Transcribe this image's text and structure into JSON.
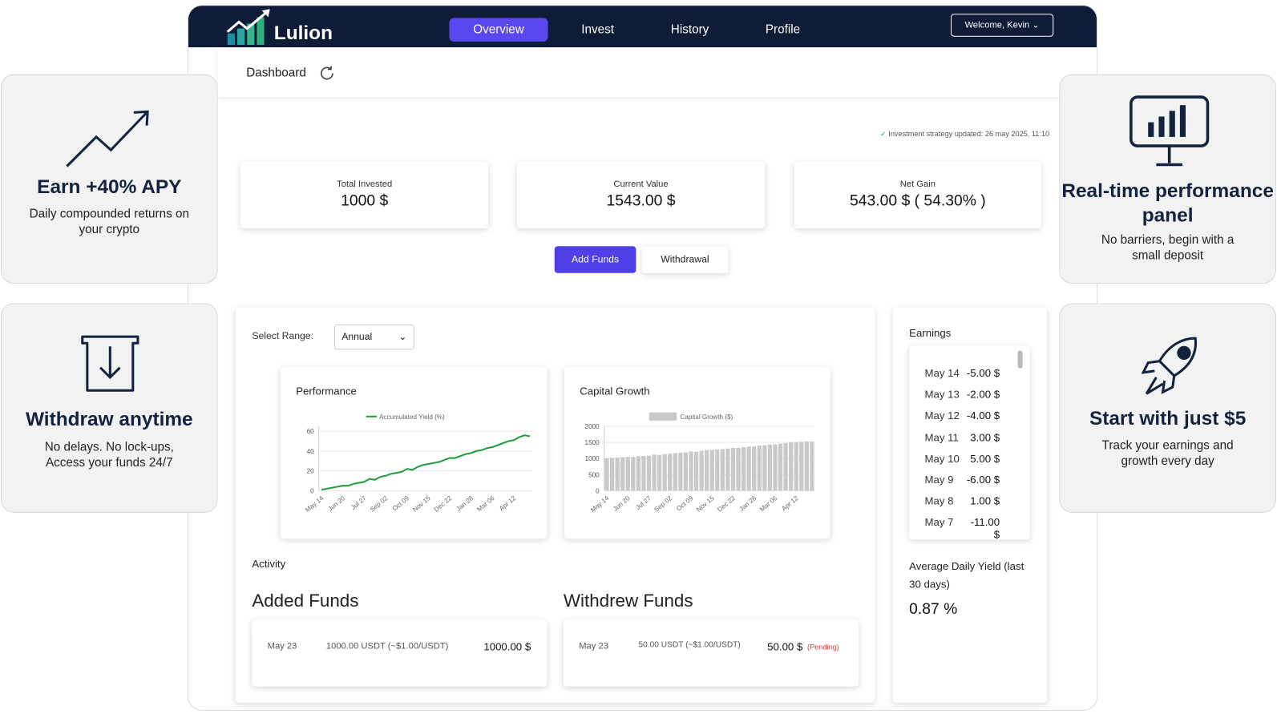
{
  "nav": {
    "brand": "Lulion",
    "items": [
      "Overview",
      "Invest",
      "History",
      "Profile"
    ],
    "user": "Welcome, Kevin"
  },
  "dashboard": {
    "title": "Dashboard",
    "status": "Investment strategy updated: 26 may 2025, 11:10",
    "stats": [
      {
        "label": "Total Invested",
        "value": "1000 $"
      },
      {
        "label": "Current Value",
        "value": "1543.00 $"
      },
      {
        "label": "Net Gain",
        "value": "543.00 $ ( 54.30% )"
      }
    ],
    "buttons": [
      "Add Funds",
      "Withdrawal"
    ],
    "range": {
      "label": "Select Range:",
      "value": "Annual"
    },
    "activity": {
      "title": "Activity",
      "added": {
        "title": "Added Funds",
        "rows": [
          {
            "date": "May 23",
            "detail": "1000.00 USDT (~$1.00/USDT)",
            "amount": "1000.00 $"
          }
        ]
      },
      "withdrew": {
        "title": "Withdrew Funds",
        "rows": [
          {
            "date": "May 23",
            "detail": "50.00 USDT (~$1.00/USDT)",
            "amount": "50.00 $",
            "status": "(Pending)"
          }
        ]
      }
    },
    "earnings": {
      "title": "Earnings",
      "rows": [
        [
          "May 14",
          "-5.00 $"
        ],
        [
          "May 13",
          "-2.00 $"
        ],
        [
          "May 12",
          "-4.00 $"
        ],
        [
          "May 11",
          "3.00 $"
        ],
        [
          "May 10",
          "5.00 $"
        ],
        [
          "May 9",
          "-6.00 $"
        ],
        [
          "May 8",
          "1.00 $"
        ],
        [
          "May 7",
          "-11.00 $"
        ]
      ],
      "yield_label": "Average Daily Yield (last 30 days)",
      "yield_value": "0.87 %"
    }
  },
  "features": [
    {
      "title": "Earn +40% APY",
      "text": "Daily compounded returns on your crypto"
    },
    {
      "title": "Withdraw anytime",
      "text": "No delays. No lock-ups, Access your funds 24/7"
    },
    {
      "title": "Real-time performance panel",
      "text": "No barriers, begin with a small deposit"
    },
    {
      "title": "Start with just $5",
      "text": "Track your earnings and growth every day"
    }
  ],
  "chart_data": [
    {
      "type": "line",
      "title": "Performance",
      "categories": [
        "May 14",
        null,
        null,
        null,
        "Jun 20",
        null,
        null,
        null,
        "Jul 27",
        null,
        null,
        null,
        "Sep 02",
        null,
        null,
        null,
        "Oct 09",
        null,
        null,
        null,
        "Nov 15",
        null,
        null,
        null,
        "Dec 22",
        null,
        null,
        null,
        "Jan 28",
        null,
        null,
        null,
        "Mar 06",
        null,
        null,
        null,
        "Apr 12",
        null,
        null,
        null
      ],
      "series": [
        {
          "name": "Accumulated Yield (%)",
          "color": "#1e9e3c",
          "values": [
            1,
            2,
            3,
            4,
            5,
            5,
            7,
            8,
            9,
            12,
            11,
            14,
            15,
            17,
            18,
            19,
            22,
            21,
            24,
            26,
            27,
            28,
            29,
            31,
            33,
            33,
            35,
            37,
            38,
            40,
            41,
            43,
            44,
            46,
            48,
            50,
            51,
            54,
            56,
            55
          ]
        }
      ],
      "ylim": [
        0,
        65
      ],
      "yticks": [
        0,
        20,
        40,
        60
      ],
      "grid": true
    },
    {
      "type": "bar",
      "title": "Capital Growth",
      "categories": [
        "May 14",
        null,
        null,
        null,
        "Jun 20",
        null,
        null,
        null,
        "Jul 27",
        null,
        null,
        null,
        "Sep 02",
        null,
        null,
        null,
        "Oct 09",
        null,
        null,
        null,
        "Nov 15",
        null,
        null,
        null,
        "Dec 22",
        null,
        null,
        null,
        "Jan 28",
        null,
        null,
        null,
        "Mar 06",
        null,
        null,
        null,
        "Apr 12",
        null,
        null,
        null
      ],
      "series": [
        {
          "name": "Capital Growth ($)",
          "color": "#c9c9c9",
          "values": [
            1010,
            1020,
            1030,
            1040,
            1050,
            1050,
            1070,
            1080,
            1090,
            1120,
            1110,
            1140,
            1150,
            1170,
            1180,
            1190,
            1220,
            1210,
            1240,
            1260,
            1270,
            1280,
            1290,
            1310,
            1330,
            1330,
            1350,
            1370,
            1380,
            1400,
            1410,
            1430,
            1440,
            1460,
            1480,
            1500,
            1510,
            1520,
            1530,
            1530
          ]
        }
      ],
      "ylim": [
        0,
        2000
      ],
      "yticks": [
        0,
        500,
        1000,
        1500,
        2000
      ],
      "grid": true
    }
  ]
}
